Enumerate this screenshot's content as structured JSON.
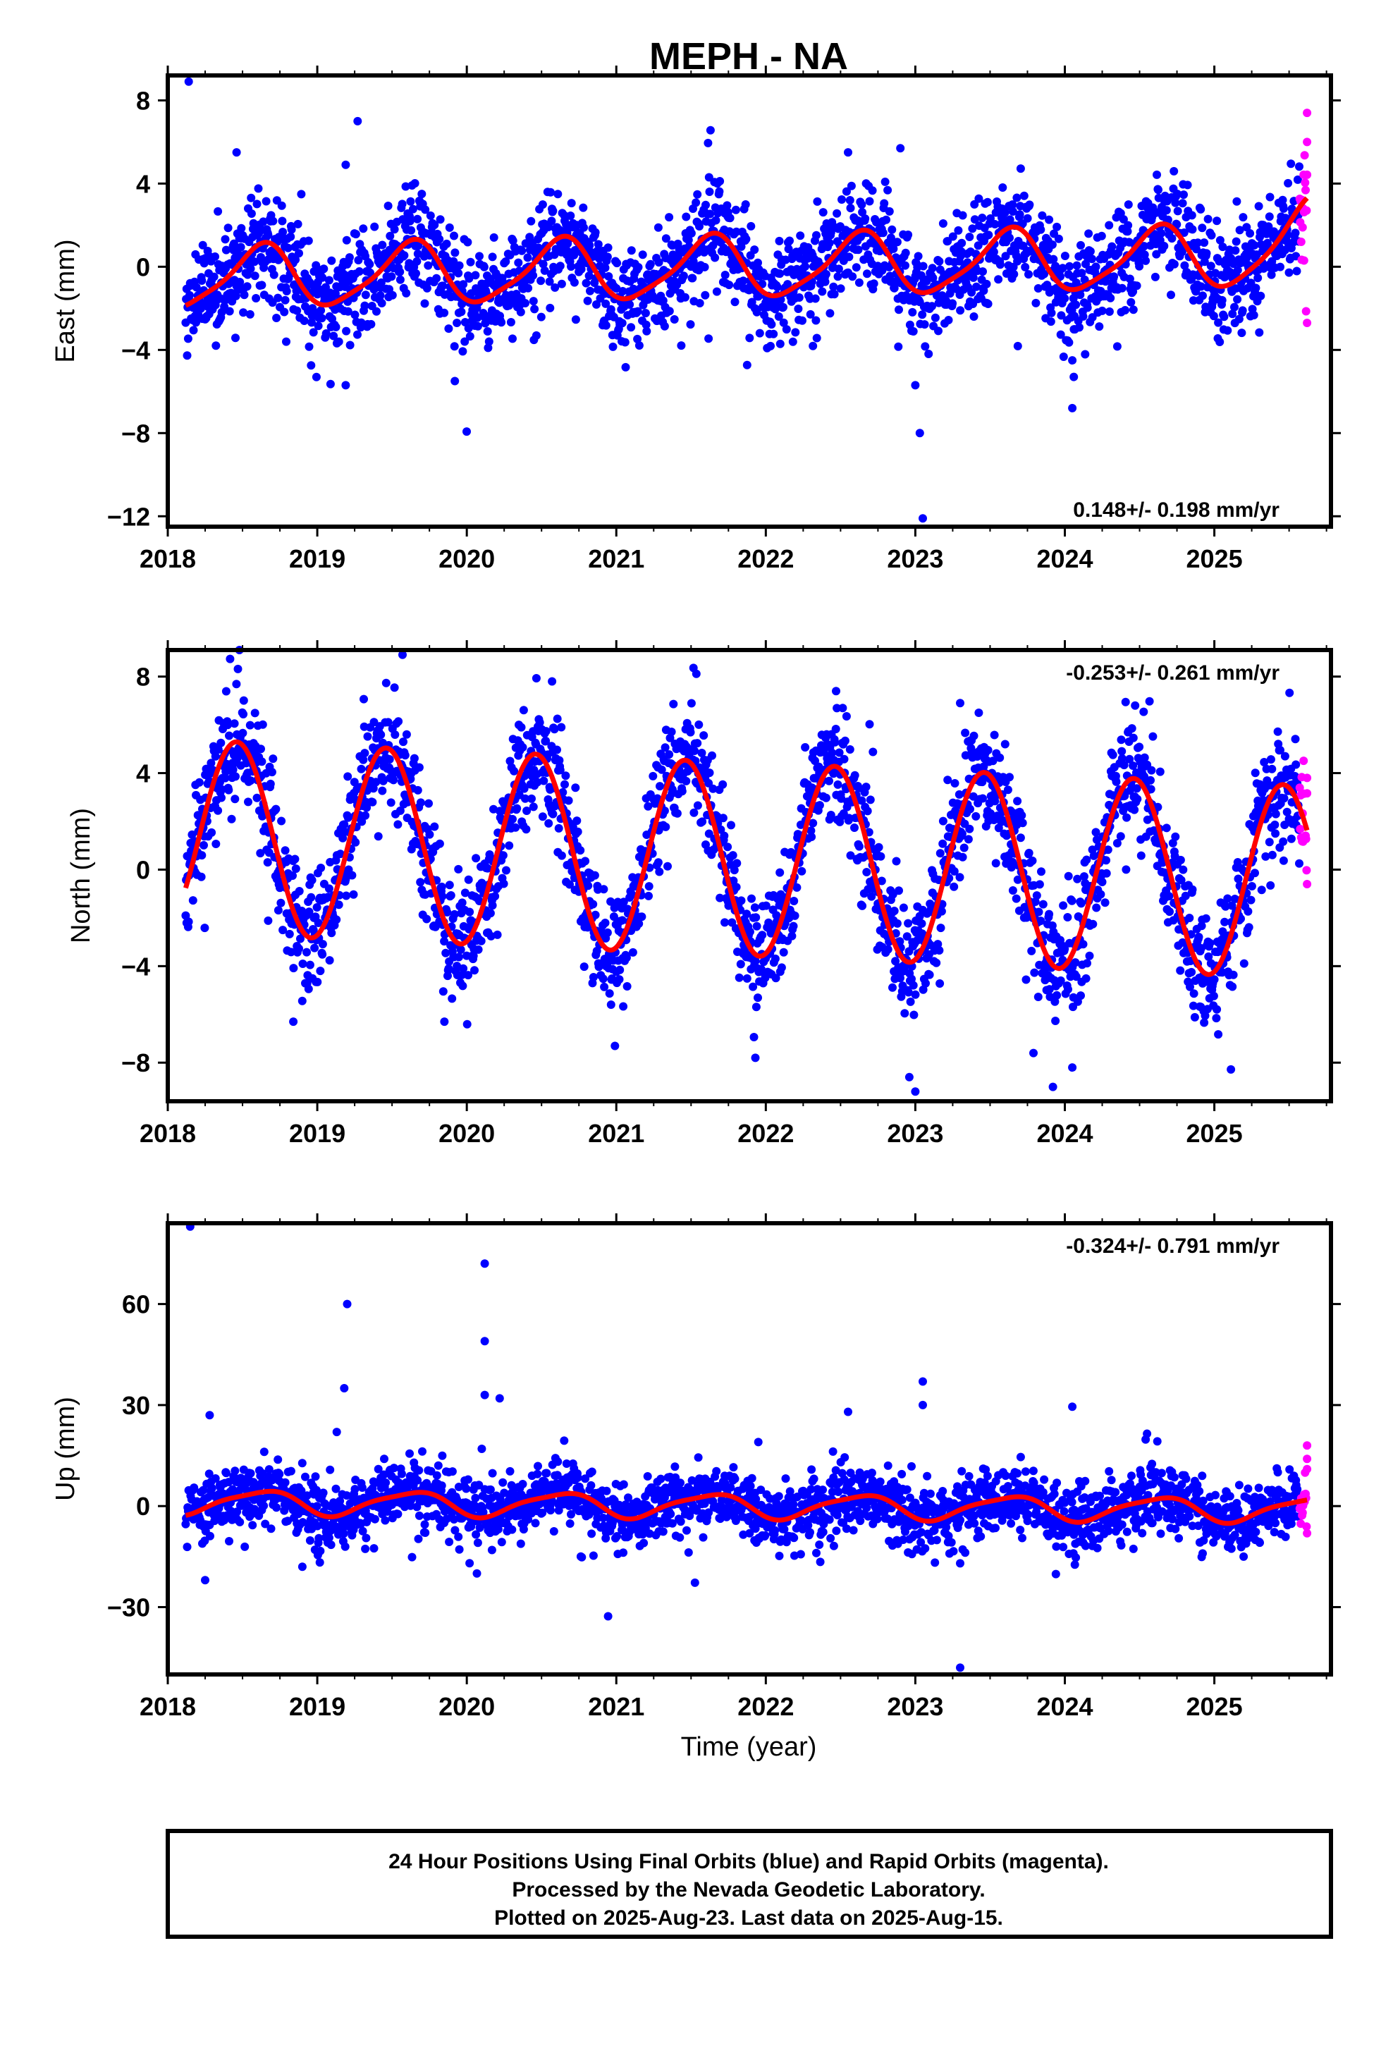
{
  "title": "MEPH - NA",
  "footer": {
    "line1": "24 Hour Positions Using Final Orbits (blue) and Rapid Orbits (magenta).",
    "line2": "Processed by the Nevada Geodetic Laboratory.",
    "line3": "Plotted on 2025-Aug-23. Last data on 2025-Aug-15."
  },
  "colors": {
    "final_orbits": "#0000ff",
    "rapid_orbits": "#ff00ff",
    "fit_line": "#ff0000",
    "frame": "#000000"
  },
  "chart_data": [
    {
      "type": "scatter",
      "panel": "east",
      "ylabel": "East (mm)",
      "xlabel": "",
      "rate_text": "0.148+/- 0.198 mm/yr",
      "rate_position": "bottom-right",
      "xlim": [
        2018.0,
        2025.78
      ],
      "ylim": [
        -12.5,
        9.2
      ],
      "x_ticks": [
        2018,
        2019,
        2020,
        2021,
        2022,
        2023,
        2024,
        2025
      ],
      "y_ticks": [
        8,
        4,
        0,
        -4,
        -8,
        -12
      ],
      "y_tick_labels": [
        "8",
        "4",
        "0",
        "−4",
        "−8",
        "−12"
      ],
      "data_start": 2018.12,
      "data_end": 2025.62,
      "rapid_start": 2025.57,
      "model": {
        "trend": 0.148,
        "ref_year": 2022.0,
        "offset": 0.0,
        "annual_amp": 1.45,
        "annual_peak": 0.62,
        "semiannual_amp": 0.3,
        "semiannual_phase": 0.2,
        "late_ramp_start": 2025.0,
        "late_ramp_rate": 3.0
      },
      "scatter_sigma": 1.25,
      "n_points": 2300,
      "outliers": [
        [
          2018.14,
          8.9
        ],
        [
          2019.27,
          7.0
        ],
        [
          2019.19,
          4.9
        ],
        [
          2019.19,
          -5.7
        ],
        [
          2019.92,
          -5.5
        ],
        [
          2022.9,
          5.7
        ],
        [
          2023.0,
          -5.7
        ],
        [
          2023.03,
          -8.0
        ],
        [
          2023.05,
          -12.1
        ],
        [
          2024.05,
          -4.5
        ],
        [
          2024.06,
          -5.3
        ],
        [
          2024.05,
          -6.8
        ],
        [
          2025.62,
          7.4
        ],
        [
          2025.62,
          6.0
        ],
        [
          2025.62,
          -2.7
        ],
        [
          2025.6,
          0.3
        ],
        [
          2022.55,
          5.5
        ],
        [
          2018.46,
          5.5
        ]
      ]
    },
    {
      "type": "scatter",
      "panel": "north",
      "ylabel": "North (mm)",
      "xlabel": "",
      "rate_text": "-0.253+/- 0.261 mm/yr",
      "rate_position": "top-right",
      "xlim": [
        2018.0,
        2025.78
      ],
      "ylim": [
        -9.6,
        9.1
      ],
      "x_ticks": [
        2018,
        2019,
        2020,
        2021,
        2022,
        2023,
        2024,
        2025
      ],
      "y_ticks": [
        8,
        4,
        0,
        -4,
        -8
      ],
      "y_tick_labels": [
        "8",
        "4",
        "0",
        "−4",
        "−8"
      ],
      "data_start": 2018.12,
      "data_end": 2025.62,
      "rapid_start": 2025.57,
      "model": {
        "trend": -0.253,
        "ref_year": 2022.0,
        "offset": 0.4,
        "annual_amp": 4.0,
        "annual_peak": 0.46,
        "semiannual_amp": 0.0,
        "semiannual_phase": 0.0,
        "late_ramp_start": 0,
        "late_ramp_rate": 0
      },
      "scatter_sigma": 1.2,
      "n_points": 2300,
      "outliers": [
        [
          2019.57,
          8.9
        ],
        [
          2023.0,
          -9.2
        ],
        [
          2022.96,
          -8.6
        ],
        [
          2023.79,
          -7.6
        ],
        [
          2024.05,
          -8.2
        ],
        [
          2021.93,
          -7.8
        ],
        [
          2019.85,
          -6.3
        ],
        [
          2018.84,
          -6.3
        ],
        [
          2025.62,
          3.8
        ],
        [
          2025.62,
          -0.6
        ],
        [
          2020.57,
          7.8
        ],
        [
          2022.47,
          7.4
        ],
        [
          2023.3,
          6.9
        ],
        [
          2024.47,
          6.8
        ]
      ]
    },
    {
      "type": "scatter",
      "panel": "up",
      "ylabel": "Up (mm)",
      "xlabel": "Time (year)",
      "rate_text": "-0.324+/- 0.791 mm/yr",
      "rate_position": "top-right",
      "xlim": [
        2018.0,
        2025.78
      ],
      "ylim": [
        -50,
        84
      ],
      "x_ticks": [
        2018,
        2019,
        2020,
        2021,
        2022,
        2023,
        2024,
        2025
      ],
      "y_ticks": [
        60,
        30,
        0,
        -30
      ],
      "y_tick_labels": [
        "60",
        "30",
        "0",
        "−30"
      ],
      "data_start": 2018.12,
      "data_end": 2025.62,
      "rapid_start": 2025.57,
      "model": {
        "trend": -0.324,
        "ref_year": 2022.0,
        "offset": 0.0,
        "annual_amp": 3.5,
        "annual_peak": 0.62,
        "semiannual_amp": 0.8,
        "semiannual_phase": 0.3,
        "late_ramp_start": 0,
        "late_ramp_rate": 0
      },
      "scatter_sigma": 4.8,
      "n_points": 2300,
      "outliers": [
        [
          2018.15,
          83.0
        ],
        [
          2020.12,
          72.0
        ],
        [
          2019.2,
          60.0
        ],
        [
          2020.12,
          49.0
        ],
        [
          2019.18,
          35.0
        ],
        [
          2020.12,
          33.0
        ],
        [
          2020.22,
          32.0
        ],
        [
          2023.05,
          37.0
        ],
        [
          2023.05,
          30.0
        ],
        [
          2024.05,
          29.5
        ],
        [
          2018.28,
          27.0
        ],
        [
          2022.55,
          28.0
        ],
        [
          2023.3,
          -48.0
        ],
        [
          2018.25,
          -22.0
        ],
        [
          2018.9,
          -18.0
        ],
        [
          2023.3,
          -17.0
        ],
        [
          2025.62,
          18.0
        ],
        [
          2025.62,
          14.0
        ],
        [
          2025.62,
          11.0
        ],
        [
          2019.13,
          22.0
        ],
        [
          2020.1,
          17.0
        ],
        [
          2021.95,
          19.0
        ],
        [
          2024.55,
          21.5
        ]
      ]
    }
  ]
}
